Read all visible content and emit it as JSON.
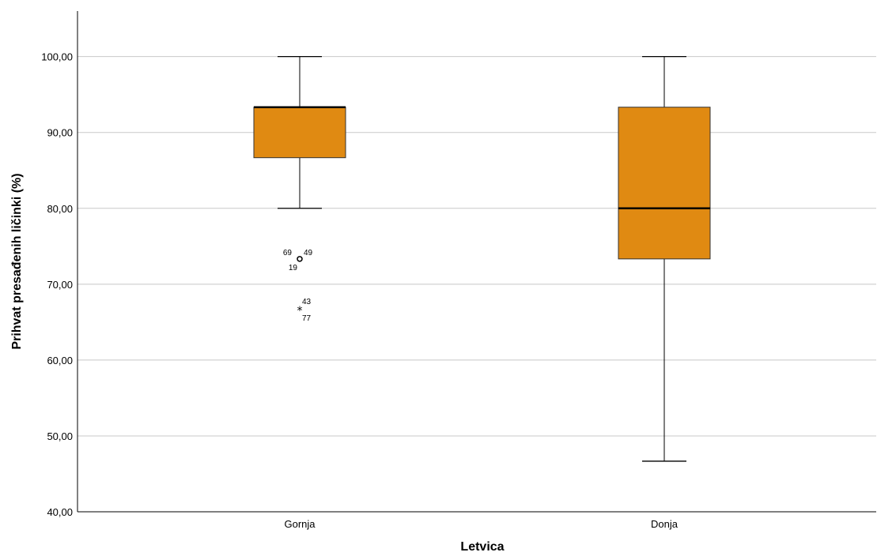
{
  "chart_data": {
    "type": "boxplot",
    "xlabel": "Letvica",
    "ylabel": "Prihvat presađenih ličinki (%)",
    "ylim": [
      40,
      106
    ],
    "yticks": [
      40,
      50,
      60,
      70,
      80,
      90,
      100
    ],
    "ytick_labels": [
      "40,00",
      "50,00",
      "60,00",
      "70,00",
      "80,00",
      "90,00",
      "100,00"
    ],
    "grid": "horizontal",
    "box_color": "#E08A12",
    "categories": [
      "Gornja",
      "Donja"
    ],
    "boxes": [
      {
        "category": "Gornja",
        "whisker_low": 80.0,
        "q1": 86.67,
        "median": 93.33,
        "q3": 93.33,
        "whisker_high": 100.0,
        "outliers": [
          {
            "value": 73.33,
            "marker": "circle",
            "labels": [
              "69",
              "49",
              "19"
            ]
          },
          {
            "value": 66.67,
            "marker": "star",
            "labels": [
              "43",
              "77"
            ]
          }
        ]
      },
      {
        "category": "Donja",
        "whisker_low": 46.67,
        "q1": 73.33,
        "median": 80.0,
        "q3": 93.33,
        "whisker_high": 100.0,
        "outliers": []
      }
    ]
  }
}
